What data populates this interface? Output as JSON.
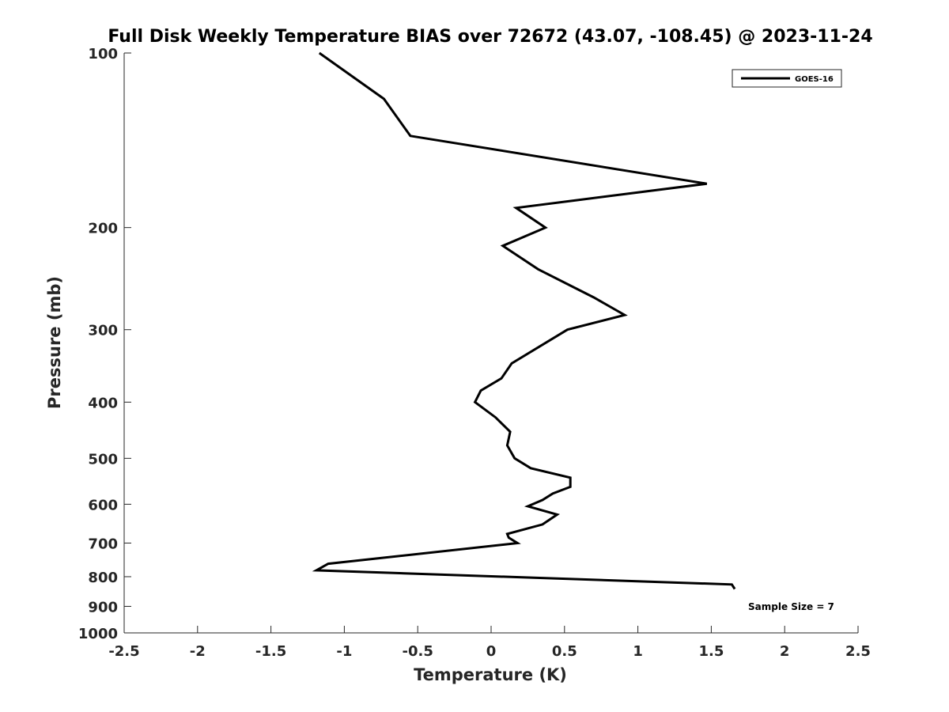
{
  "chart_data": {
    "type": "line",
    "title": "Full Disk Weekly Temperature BIAS over 72672 (43.07, -108.45) @ 2023-11-24",
    "xlabel": "Temperature (K)",
    "ylabel": "Pressure (mb)",
    "xlim": [
      -2.5,
      2.5
    ],
    "ylim": [
      100,
      1000
    ],
    "y_scale": "log",
    "y_direction": "reversed",
    "x_ticks": [
      "-2.5",
      "-2",
      "-1.5",
      "-1",
      "-0.5",
      "0",
      "0.5",
      "1",
      "1.5",
      "2",
      "2.5"
    ],
    "x_tick_values": [
      -2.5,
      -2,
      -1.5,
      -1,
      -0.5,
      0,
      0.5,
      1,
      1.5,
      2,
      2.5
    ],
    "y_ticks": [
      "100",
      "200",
      "300",
      "400",
      "500",
      "600",
      "700",
      "800",
      "900",
      "1000"
    ],
    "y_tick_values": [
      100,
      200,
      300,
      400,
      500,
      600,
      700,
      800,
      900,
      1000
    ],
    "grid": false,
    "legend_position": "top-right",
    "line_color": "#000000",
    "series": [
      {
        "name": "GOES-16",
        "points": [
          [
            -1.17,
            100
          ],
          [
            -0.73,
            120
          ],
          [
            -0.55,
            139
          ],
          [
            1.47,
            168
          ],
          [
            0.17,
            185
          ],
          [
            0.37,
            200
          ],
          [
            0.08,
            215
          ],
          [
            0.32,
            236
          ],
          [
            0.7,
            264
          ],
          [
            0.91,
            283
          ],
          [
            0.52,
            300
          ],
          [
            0.14,
            343
          ],
          [
            0.07,
            364
          ],
          [
            -0.07,
            382
          ],
          [
            -0.11,
            400
          ],
          [
            0.03,
            425
          ],
          [
            0.13,
            450
          ],
          [
            0.11,
            475
          ],
          [
            0.16,
            500
          ],
          [
            0.27,
            520
          ],
          [
            0.54,
            540
          ],
          [
            0.54,
            560
          ],
          [
            0.42,
            575
          ],
          [
            0.35,
            590
          ],
          [
            0.25,
            605
          ],
          [
            0.45,
            625
          ],
          [
            0.35,
            650
          ],
          [
            0.11,
            675
          ],
          [
            0.12,
            685
          ],
          [
            0.18,
            700
          ],
          [
            -1.11,
            760
          ],
          [
            -1.19,
            780
          ],
          [
            1.64,
            825
          ],
          [
            1.66,
            840
          ]
        ]
      }
    ],
    "annotation": "Sample Size = 7"
  }
}
